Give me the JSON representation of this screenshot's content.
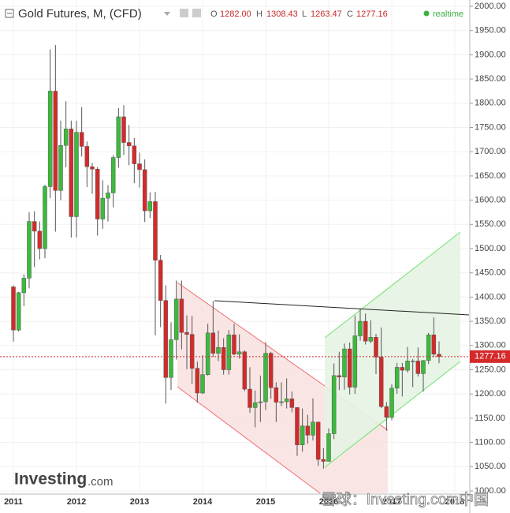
{
  "chart_data": {
    "type": "candlestick",
    "title": "Gold Futures, M, (CFD)",
    "ohlc_header": {
      "o_key": "O",
      "o": "1282.00",
      "h_key": "H",
      "h": "1308.43",
      "l_key": "L",
      "l": "1263.47",
      "c_key": "C",
      "c": "1277.16"
    },
    "status": "realtime",
    "categories": [
      "2011",
      null,
      null,
      null,
      null,
      null,
      null,
      null,
      null,
      null,
      null,
      null,
      "2012",
      null,
      null,
      null,
      null,
      null,
      null,
      null,
      null,
      null,
      null,
      null,
      "2013",
      null,
      null,
      null,
      null,
      null,
      null,
      null,
      null,
      null,
      null,
      null,
      "2014",
      null,
      null,
      null,
      null,
      null,
      null,
      null,
      null,
      null,
      null,
      null,
      "2015",
      null,
      null,
      null,
      null,
      null,
      null,
      null,
      null,
      null,
      null,
      null,
      "2016",
      null,
      null,
      null,
      null,
      null,
      null,
      null,
      null,
      null,
      null,
      null,
      "2017",
      null,
      null,
      null,
      null,
      null,
      null,
      null,
      null,
      null,
      null,
      null,
      "2018"
    ],
    "open": [
      1421,
      1332,
      1409,
      1439,
      1556,
      1536,
      1500,
      1628,
      1825,
      1620,
      1713,
      1747,
      1566,
      1740,
      1711,
      1669,
      1664,
      1561,
      1604,
      1615,
      1688,
      1772,
      1719,
      1712,
      1675,
      1663,
      1578,
      1597,
      1476,
      1393,
      1234,
      1312,
      1396,
      1327,
      1323,
      1253,
      1202,
      1240,
      1326,
      1284,
      1296,
      1250,
      1322,
      1282,
      1287,
      1210,
      1172,
      1182,
      1184,
      1284,
      1213,
      1183,
      1184,
      1190,
      1172,
      1095,
      1134,
      1115,
      1142,
      1065,
      1061,
      1118,
      1238,
      1235,
      1293,
      1214,
      1320,
      1350,
      1309,
      1317,
      1276,
      1174,
      1152,
      1212,
      1255,
      1249,
      1268,
      1268,
      1242,
      1269,
      1322,
      1282,
      null,
      null,
      null
    ],
    "high": [
      1424,
      1411,
      1447,
      1575,
      1577,
      1556,
      1632,
      1911,
      1920,
      1764,
      1804,
      1764,
      1764,
      1792,
      1721,
      1677,
      1668,
      1641,
      1631,
      1693,
      1790,
      1796,
      1755,
      1728,
      1698,
      1684,
      1616,
      1617,
      1487,
      1424,
      1348,
      1434,
      1434,
      1362,
      1361,
      1267,
      1280,
      1345,
      1392,
      1331,
      1315,
      1332,
      1345,
      1323,
      1290,
      1255,
      1207,
      1238,
      1307,
      1287,
      1224,
      1224,
      1232,
      1205,
      1173,
      1170,
      1157,
      1191,
      1143,
      1088,
      1129,
      1263,
      1287,
      1304,
      1306,
      1362,
      1377,
      1366,
      1352,
      1324,
      1337,
      1183,
      1220,
      1264,
      1264,
      1297,
      1272,
      1296,
      1270,
      1326,
      1358,
      1308.43,
      null,
      null,
      null
    ],
    "low": [
      1308,
      1329,
      1381,
      1418,
      1462,
      1478,
      1480,
      1604,
      1535,
      1600,
      1668,
      1523,
      1523,
      1690,
      1627,
      1613,
      1527,
      1541,
      1556,
      1585,
      1667,
      1693,
      1672,
      1635,
      1626,
      1555,
      1563,
      1321,
      1338,
      1180,
      1208,
      1271,
      1292,
      1251,
      1221,
      1182,
      1200,
      1238,
      1277,
      1268,
      1240,
      1240,
      1280,
      1273,
      1206,
      1161,
      1131,
      1142,
      1167,
      1190,
      1142,
      1175,
      1170,
      1162,
      1072,
      1081,
      1097,
      1104,
      1052,
      1046,
      1061,
      1107,
      1208,
      1209,
      1199,
      1200,
      1310,
      1302,
      1305,
      1241,
      1171,
      1124,
      1146,
      1200,
      1195,
      1244,
      1214,
      1236,
      1205,
      1262,
      1277,
      1263.47,
      null,
      null,
      null
    ],
    "close": [
      1332,
      1409,
      1439,
      1556,
      1536,
      1500,
      1628,
      1825,
      1620,
      1713,
      1747,
      1566,
      1740,
      1711,
      1669,
      1664,
      1561,
      1604,
      1615,
      1688,
      1772,
      1719,
      1712,
      1675,
      1663,
      1578,
      1597,
      1476,
      1393,
      1234,
      1312,
      1396,
      1327,
      1323,
      1253,
      1202,
      1240,
      1326,
      1284,
      1296,
      1250,
      1322,
      1282,
      1287,
      1210,
      1172,
      1182,
      1184,
      1284,
      1213,
      1183,
      1184,
      1190,
      1172,
      1095,
      1134,
      1115,
      1142,
      1065,
      1061,
      1118,
      1238,
      1235,
      1293,
      1214,
      1320,
      1350,
      1309,
      1317,
      1276,
      1174,
      1152,
      1212,
      1255,
      1249,
      1268,
      1268,
      1242,
      1269,
      1322,
      1282,
      1277.16,
      null,
      null,
      null
    ],
    "up_color": "#3cba3c",
    "down_color": "#d42a2a",
    "last_price": 1277.16,
    "ylim": [
      1000,
      2000
    ],
    "yticks": [
      {
        "value": 2000,
        "label": "2000.00"
      },
      {
        "value": 1950,
        "label": "1950.00"
      },
      {
        "value": 1900,
        "label": "1900.00"
      },
      {
        "value": 1850,
        "label": "1850.00"
      },
      {
        "value": 1800,
        "label": "1800.00"
      },
      {
        "value": 1750,
        "label": "1750.00"
      },
      {
        "value": 1700,
        "label": "1700.00"
      },
      {
        "value": 1650,
        "label": "1650.00"
      },
      {
        "value": 1600,
        "label": "1600.00"
      },
      {
        "value": 1550,
        "label": "1550.00"
      },
      {
        "value": 1500,
        "label": "1500.00"
      },
      {
        "value": 1450,
        "label": "1450.00"
      },
      {
        "value": 1400,
        "label": "1400.00"
      },
      {
        "value": 1350,
        "label": "1350.00"
      },
      {
        "value": 1300,
        "label": "1300.00"
      },
      {
        "value": 1250,
        "label": "1250.00"
      },
      {
        "value": 1200,
        "label": "1200.00"
      },
      {
        "value": 1150,
        "label": "1150.00"
      },
      {
        "value": 1100,
        "label": "1100.00"
      },
      {
        "value": 1050,
        "label": "1050.00"
      },
      {
        "value": 1000,
        "label": "1000.00"
      }
    ],
    "grid": true,
    "brand": "Investing",
    "brand_suffix": ".com",
    "watermark": "雪球：Investing.com中国"
  }
}
